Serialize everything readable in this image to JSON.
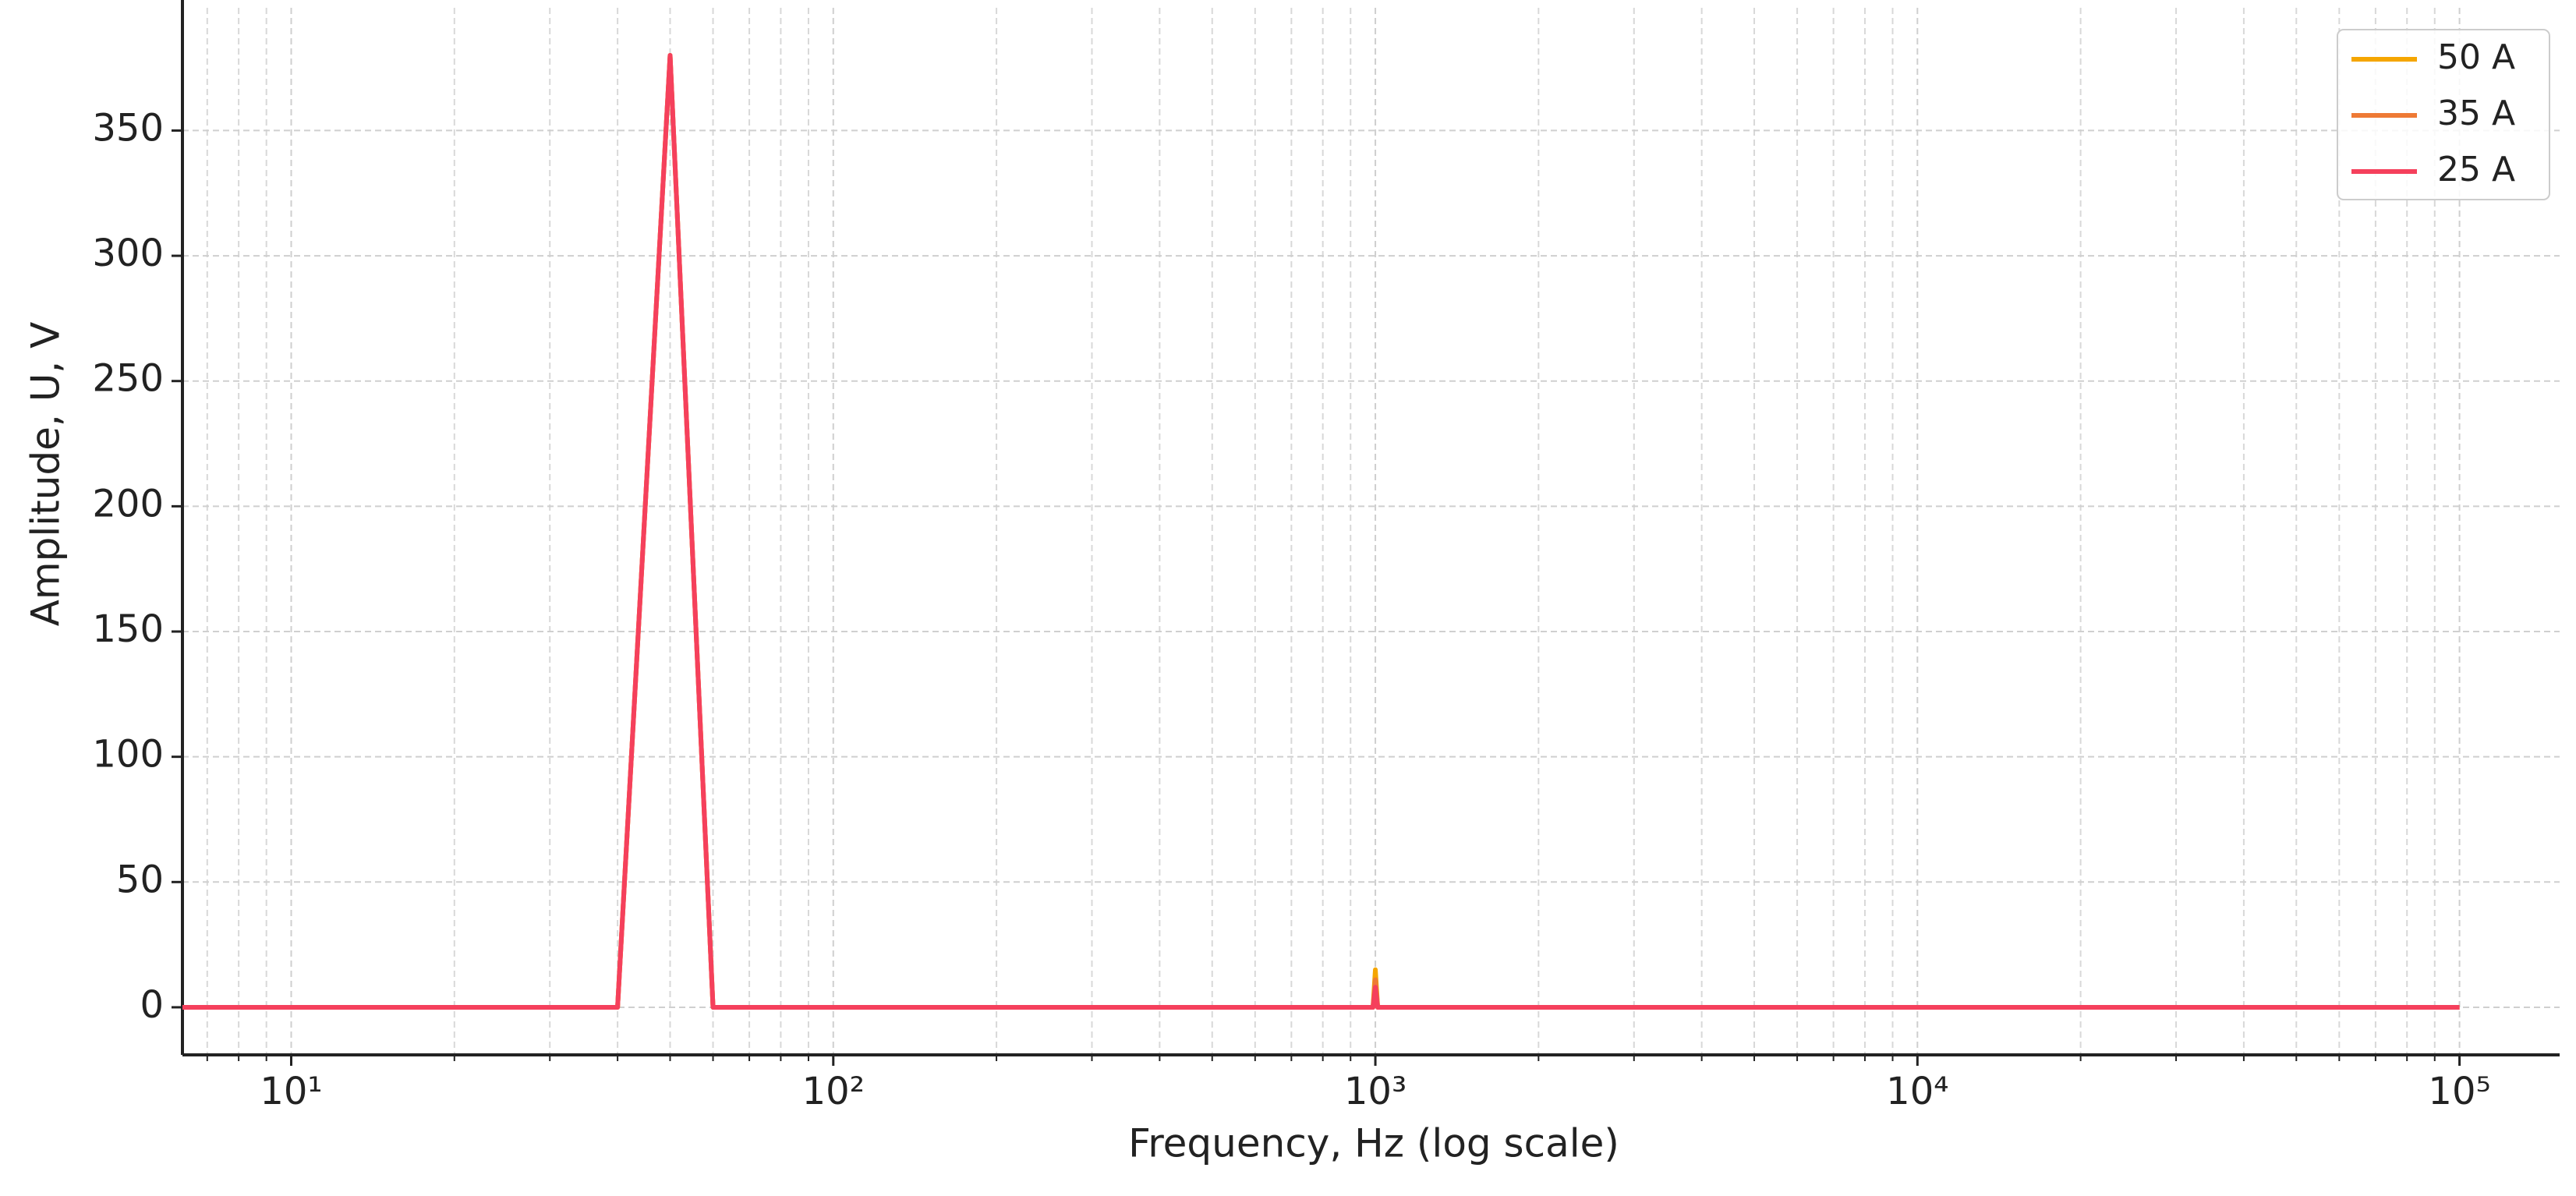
{
  "chart_data": {
    "type": "line",
    "x_label": "Frequency, Hz (log scale)",
    "y_label": "Amplitude, U, V",
    "x_log_scale": true,
    "grid": true,
    "legend_position": "upper-right",
    "xlim": [
      6.3,
      153000
    ],
    "ylim": [
      -19,
      399
    ],
    "xticks": [
      {
        "value": 10,
        "label": "10¹"
      },
      {
        "value": 100,
        "label": "10²"
      },
      {
        "value": 1000,
        "label": "10³"
      },
      {
        "value": 10000,
        "label": "10⁴"
      },
      {
        "value": 100000,
        "label": "10⁵"
      }
    ],
    "x_minor_ticks": [
      7,
      8,
      9,
      20,
      30,
      40,
      50,
      60,
      70,
      80,
      90,
      200,
      300,
      400,
      500,
      600,
      700,
      800,
      900,
      2000,
      3000,
      4000,
      5000,
      6000,
      7000,
      8000,
      9000,
      20000,
      30000,
      40000,
      50000,
      60000,
      70000,
      80000,
      90000
    ],
    "yticks": [
      0,
      50,
      100,
      150,
      200,
      250,
      300,
      350
    ],
    "x": [
      6.3,
      40,
      50,
      60,
      990,
      1000,
      1010,
      100000
    ],
    "series": [
      {
        "name": "50 A",
        "color": "#f5a600",
        "values": [
          0,
          0,
          380,
          0,
          0,
          15,
          0,
          0
        ]
      },
      {
        "name": "35 A",
        "color": "#ee7a35",
        "values": [
          0,
          0,
          380,
          0,
          0,
          11,
          0,
          0
        ]
      },
      {
        "name": "25 A",
        "color": "#f5405c",
        "values": [
          0,
          0,
          380,
          0,
          0,
          8,
          0,
          0
        ]
      }
    ]
  }
}
